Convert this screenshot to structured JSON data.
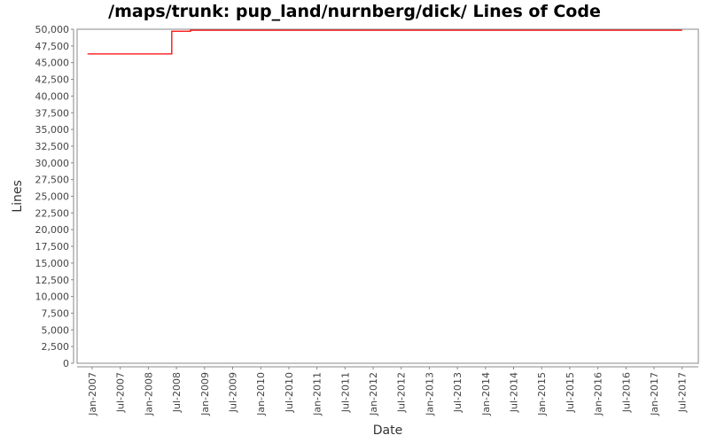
{
  "chart_data": {
    "type": "line",
    "title": "/maps/trunk: pup_land/nurnberg/dick/ Lines of Code",
    "xlabel": "Date",
    "ylabel": "Lines",
    "ylim": [
      0,
      50000
    ],
    "yticks": [
      "0",
      "2,500",
      "5,000",
      "7,500",
      "10,000",
      "12,500",
      "15,000",
      "17,500",
      "20,000",
      "22,500",
      "25,000",
      "27,500",
      "30,000",
      "32,500",
      "35,000",
      "37,500",
      "40,000",
      "42,500",
      "45,000",
      "47,500",
      "50,000"
    ],
    "xticks": [
      "Jan-2007",
      "Jul-2007",
      "Jan-2008",
      "Jul-2008",
      "Jan-2009",
      "Jul-2009",
      "Jan-2010",
      "Jul-2010",
      "Jan-2011",
      "Jul-2011",
      "Jan-2012",
      "Jul-2012",
      "Jan-2013",
      "Jul-2013",
      "Jan-2014",
      "Jul-2014",
      "Jan-2015",
      "Jul-2015",
      "Jan-2016",
      "Jul-2016",
      "Jan-2017",
      "Jul-2017"
    ],
    "xlim": [
      "2006-10",
      "2017-10"
    ],
    "step": true,
    "series": [
      {
        "color": "#ff0000",
        "points": [
          [
            "2006-12",
            46300
          ],
          [
            "2008-06",
            49700
          ],
          [
            "2008-10",
            49850
          ],
          [
            "2011-12",
            49800
          ],
          [
            "2011-12",
            49850
          ],
          [
            "2017-07",
            49850
          ]
        ]
      }
    ],
    "grid": false
  }
}
